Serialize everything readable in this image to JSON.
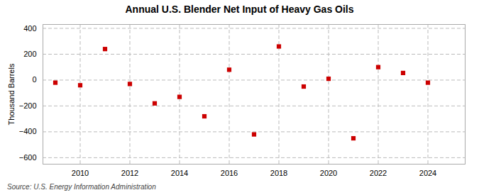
{
  "chart_data": {
    "type": "scatter",
    "title": "Annual U.S. Blender Net Input of Heavy Gas Oils",
    "ylabel": "Thousand Barrels",
    "annotations": [
      "Source: U.S. Energy Information Administration"
    ],
    "x": [
      2009,
      2010,
      2011,
      2012,
      2013,
      2014,
      2015,
      2016,
      2017,
      2018,
      2019,
      2020,
      2021,
      2022,
      2023,
      2024
    ],
    "values": [
      -20,
      -40,
      240,
      -30,
      -180,
      -130,
      -280,
      80,
      -420,
      260,
      -50,
      10,
      -450,
      100,
      55,
      -20
    ],
    "color": "#cc0000",
    "marker": "square",
    "xlim": [
      2008.5,
      2025.5
    ],
    "xticks": [
      2010,
      2012,
      2014,
      2016,
      2018,
      2020,
      2022,
      2024
    ],
    "ylim": [
      -650,
      430
    ],
    "yticks": [
      -600,
      -400,
      -200,
      0,
      200,
      400
    ],
    "grid": true
  }
}
